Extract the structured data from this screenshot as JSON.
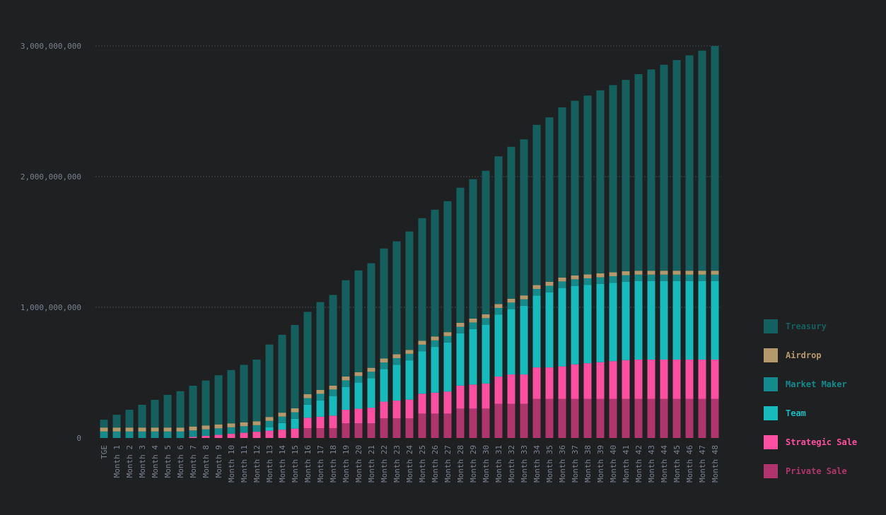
{
  "chart_data": {
    "type": "bar",
    "stacked": true,
    "title": "",
    "xlabel": "",
    "ylabel": "",
    "ylim": [
      0,
      3000000000
    ],
    "yticks": [
      0,
      1000000000,
      2000000000,
      3000000000
    ],
    "ytick_labels": [
      "0",
      "1,000,000,000",
      "2,000,000,000",
      "3,000,000,000"
    ],
    "grid": "horizontal dashed",
    "legend_position": "right",
    "categories": [
      "TGE",
      "Month 1",
      "Month 2",
      "Month 3",
      "Month 4",
      "Month 5",
      "Month 6",
      "Month 7",
      "Month 8",
      "Month 9",
      "Month 10",
      "Month 11",
      "Month 12",
      "Month 13",
      "Month 14",
      "Month 15",
      "Month 16",
      "Month 17",
      "Month 18",
      "Month 19",
      "Month 20",
      "Month 21",
      "Month 22",
      "Month 23",
      "Month 24",
      "Month 25",
      "Month 26",
      "Month 27",
      "Month 28",
      "Month 29",
      "Month 30",
      "Month 31",
      "Month 32",
      "Month 33",
      "Month 34",
      "Month 35",
      "Month 36",
      "Month 37",
      "Month 38",
      "Month 39",
      "Month 40",
      "Month 41",
      "Month 42",
      "Month 43",
      "Month 44",
      "Month 45",
      "Month 46",
      "Month 47",
      "Month 48"
    ],
    "series": [
      {
        "name": "Private Sale",
        "color": "#b0356d",
        "values": [
          0,
          0,
          0,
          0,
          0,
          0,
          0,
          0,
          0,
          0,
          0,
          0,
          0,
          0,
          0,
          0,
          75000000,
          75000000,
          75000000,
          112000000,
          112000000,
          112000000,
          150000000,
          150000000,
          150000000,
          187000000,
          187000000,
          187000000,
          225000000,
          225000000,
          225000000,
          262000000,
          262000000,
          262000000,
          300000000,
          300000000,
          300000000,
          300000000,
          300000000,
          300000000,
          300000000,
          300000000,
          300000000,
          300000000,
          300000000,
          300000000,
          300000000,
          300000000,
          300000000
        ]
      },
      {
        "name": "Strategic Sale",
        "color": "#ff4fa0",
        "values": [
          0,
          0,
          0,
          0,
          0,
          0,
          0,
          8000000,
          16000000,
          24000000,
          32000000,
          40000000,
          48000000,
          56000000,
          64000000,
          72000000,
          80000000,
          88000000,
          96000000,
          104000000,
          112000000,
          120000000,
          128000000,
          136000000,
          144000000,
          152000000,
          160000000,
          168000000,
          176000000,
          184000000,
          192000000,
          208000000,
          224000000,
          224000000,
          240000000,
          240000000,
          248000000,
          264000000,
          272000000,
          280000000,
          288000000,
          296000000,
          300000000,
          300000000,
          300000000,
          300000000,
          300000000,
          300000000,
          300000000
        ]
      },
      {
        "name": "Team",
        "color": "#16bcbd",
        "values": [
          0,
          0,
          0,
          0,
          0,
          0,
          0,
          0,
          0,
          0,
          0,
          0,
          0,
          25000000,
          50000000,
          75000000,
          100000000,
          125000000,
          150000000,
          175000000,
          200000000,
          225000000,
          250000000,
          275000000,
          300000000,
          325000000,
          350000000,
          375000000,
          400000000,
          425000000,
          450000000,
          475000000,
          500000000,
          525000000,
          550000000,
          575000000,
          600000000,
          600000000,
          600000000,
          600000000,
          600000000,
          600000000,
          600000000,
          600000000,
          600000000,
          600000000,
          600000000,
          600000000,
          600000000
        ]
      },
      {
        "name": "Market Maker",
        "color": "#138a8c",
        "values": [
          50000000,
          50000000,
          50000000,
          50000000,
          50000000,
          50000000,
          50000000,
          50000000,
          50000000,
          50000000,
          50000000,
          50000000,
          50000000,
          50000000,
          50000000,
          50000000,
          50000000,
          50000000,
          50000000,
          50000000,
          50000000,
          50000000,
          50000000,
          50000000,
          50000000,
          50000000,
          50000000,
          50000000,
          50000000,
          50000000,
          50000000,
          50000000,
          50000000,
          50000000,
          50000000,
          50000000,
          50000000,
          50000000,
          50000000,
          50000000,
          50000000,
          50000000,
          50000000,
          50000000,
          50000000,
          50000000,
          50000000,
          50000000,
          50000000
        ]
      },
      {
        "name": "Airdrop",
        "color": "#b3996b",
        "values": [
          30000000,
          30000000,
          30000000,
          30000000,
          30000000,
          30000000,
          30000000,
          30000000,
          30000000,
          30000000,
          30000000,
          30000000,
          30000000,
          30000000,
          30000000,
          30000000,
          30000000,
          30000000,
          30000000,
          30000000,
          30000000,
          30000000,
          30000000,
          30000000,
          30000000,
          30000000,
          30000000,
          30000000,
          30000000,
          30000000,
          30000000,
          30000000,
          30000000,
          30000000,
          30000000,
          30000000,
          30000000,
          30000000,
          30000000,
          30000000,
          30000000,
          30000000,
          30000000,
          30000000,
          30000000,
          30000000,
          30000000,
          30000000,
          30000000
        ]
      },
      {
        "name": "Treasury",
        "color": "#14605f",
        "values": [
          60000000,
          98000000,
          136000000,
          174000000,
          212000000,
          250000000,
          278000000,
          312000000,
          344000000,
          376000000,
          408000000,
          440000000,
          472000000,
          554000000,
          596000000,
          638000000,
          630000000,
          672000000,
          694000000,
          736000000,
          778000000,
          800000000,
          842000000,
          864000000,
          906000000,
          938000000,
          970000000,
          1002000000,
          1034000000,
          1066000000,
          1098000000,
          1130000000,
          1162000000,
          1194000000,
          1226000000,
          1258000000,
          1302000000,
          1336000000,
          1368000000,
          1400000000,
          1432000000,
          1464000000,
          1504000000,
          1540000000,
          1576000000,
          1612000000,
          1648000000,
          1684000000,
          1720000000
        ]
      }
    ]
  }
}
